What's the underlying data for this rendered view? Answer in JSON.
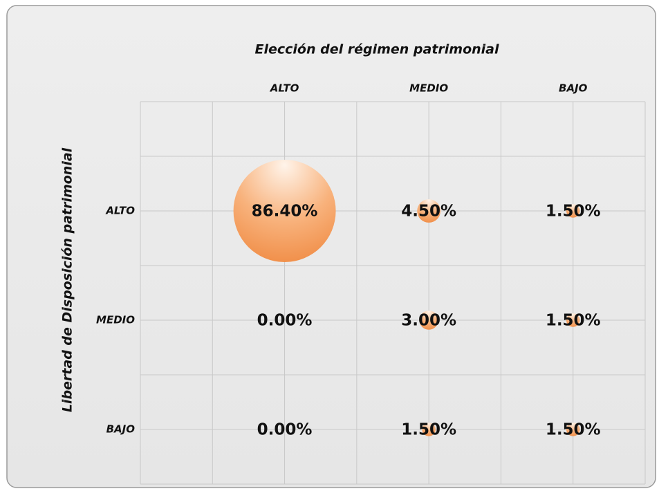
{
  "chart_data": {
    "type": "bubble",
    "title": "Elección del régimen patrimonial",
    "y_label": "Libertad de Disposición patrimonial",
    "x_categories": [
      "ALTO",
      "MEDIO",
      "BAJO"
    ],
    "y_categories": [
      "ALTO",
      "MEDIO",
      "BAJO"
    ],
    "color": "#f5a56a",
    "values": [
      [
        86.4,
        4.5,
        1.5
      ],
      [
        0,
        3,
        1.5
      ],
      [
        0,
        1.5,
        1.5
      ]
    ],
    "value_labels": [
      [
        "86.40%",
        "4.50%",
        "1.50%"
      ],
      [
        "0.00%",
        "3.00%",
        "1.50%"
      ],
      [
        "0.00%",
        "1.50%",
        "1.50%"
      ]
    ]
  }
}
